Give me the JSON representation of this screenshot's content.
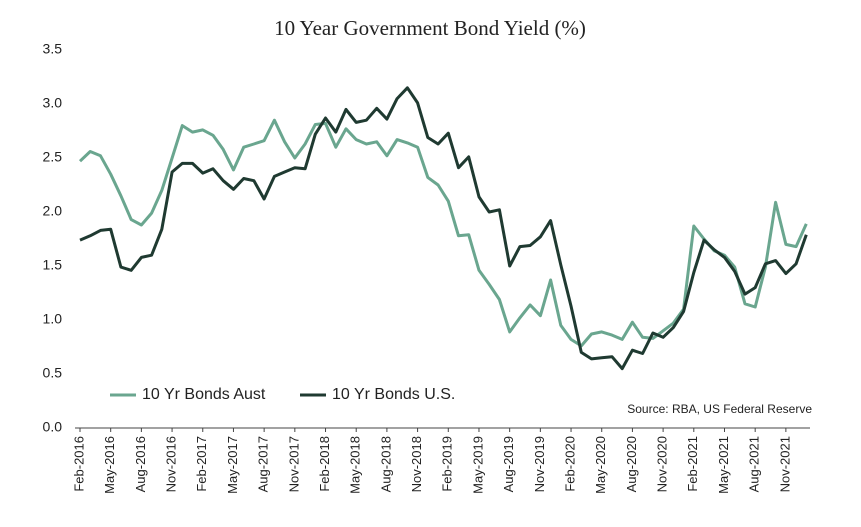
{
  "chart_data": {
    "type": "line",
    "title": "10 Year Government Bond Yield (%)",
    "categories": [
      "Feb-2016",
      null,
      null,
      "May-2016",
      null,
      null,
      "Aug-2016",
      null,
      null,
      "Nov-2016",
      null,
      null,
      "Feb-2017",
      null,
      null,
      "May-2017",
      null,
      null,
      "Aug-2017",
      null,
      null,
      "Nov-2017",
      null,
      null,
      "Feb-2018",
      null,
      null,
      "May-2018",
      null,
      null,
      "Aug-2018",
      null,
      null,
      "Nov-2018",
      null,
      null,
      "Feb-2019",
      null,
      null,
      "May-2019",
      null,
      null,
      "Aug-2019",
      null,
      null,
      "Nov-2019",
      null,
      null,
      "Feb-2020",
      null,
      null,
      "May-2020",
      null,
      null,
      "Aug-2020",
      null,
      null,
      "Nov-2020",
      null,
      null,
      "Feb-2021",
      null,
      null,
      "May-2021",
      null,
      null,
      "Aug-2021",
      null,
      null,
      "Nov-2021",
      null,
      null
    ],
    "series": [
      {
        "name": "10 Yr Bonds Aust",
        "color": "#6aa68f",
        "values": [
          2.47,
          2.56,
          2.52,
          2.35,
          2.15,
          1.93,
          1.88,
          1.99,
          2.2,
          2.5,
          2.8,
          2.74,
          2.76,
          2.71,
          2.58,
          2.39,
          2.6,
          2.63,
          2.66,
          2.85,
          2.65,
          2.5,
          2.63,
          2.81,
          2.82,
          2.6,
          2.77,
          2.67,
          2.63,
          2.65,
          2.52,
          2.67,
          2.64,
          2.6,
          2.32,
          2.25,
          2.1,
          1.78,
          1.79,
          1.46,
          1.33,
          1.19,
          0.89,
          1.02,
          1.14,
          1.04,
          1.37,
          0.95,
          0.82,
          0.76,
          0.87,
          0.89,
          0.86,
          0.82,
          0.98,
          0.84,
          0.83,
          0.9,
          0.97,
          1.1,
          1.87,
          1.75,
          1.64,
          1.6,
          1.49,
          1.15,
          1.12,
          1.49,
          2.09,
          1.7,
          1.68,
          1.89
        ]
      },
      {
        "name": "10 Yr Bonds U.S.",
        "color": "#1f3a31",
        "values": [
          1.74,
          1.78,
          1.83,
          1.84,
          1.49,
          1.46,
          1.58,
          1.6,
          1.84,
          2.37,
          2.45,
          2.45,
          2.36,
          2.4,
          2.29,
          2.21,
          2.31,
          2.29,
          2.12,
          2.33,
          2.37,
          2.41,
          2.4,
          2.72,
          2.87,
          2.74,
          2.95,
          2.83,
          2.85,
          2.96,
          2.86,
          3.05,
          3.15,
          3.01,
          2.69,
          2.63,
          2.73,
          2.41,
          2.51,
          2.14,
          2.0,
          2.02,
          1.5,
          1.68,
          1.69,
          1.77,
          1.92,
          1.51,
          1.13,
          0.7,
          0.64,
          0.65,
          0.66,
          0.55,
          0.72,
          0.69,
          0.88,
          0.84,
          0.93,
          1.08,
          1.44,
          1.74,
          1.65,
          1.58,
          1.45,
          1.24,
          1.3,
          1.52,
          1.55,
          1.43,
          1.52,
          1.79
        ]
      }
    ],
    "ylim": [
      0,
      3.5
    ],
    "yticks": [
      {
        "value": 0,
        "label": "0.0"
      },
      {
        "value": 0.5,
        "label": "0.5"
      },
      {
        "value": 1,
        "label": "1.0"
      },
      {
        "value": 1.5,
        "label": "1.5"
      },
      {
        "value": 2,
        "label": "2.0"
      },
      {
        "value": 2.5,
        "label": "2.5"
      },
      {
        "value": 3,
        "label": "3.0"
      },
      {
        "value": 3.5,
        "label": "3.5"
      }
    ],
    "annotation": "Source: RBA, US Federal Reserve",
    "grid": false,
    "legend": "lower left"
  }
}
